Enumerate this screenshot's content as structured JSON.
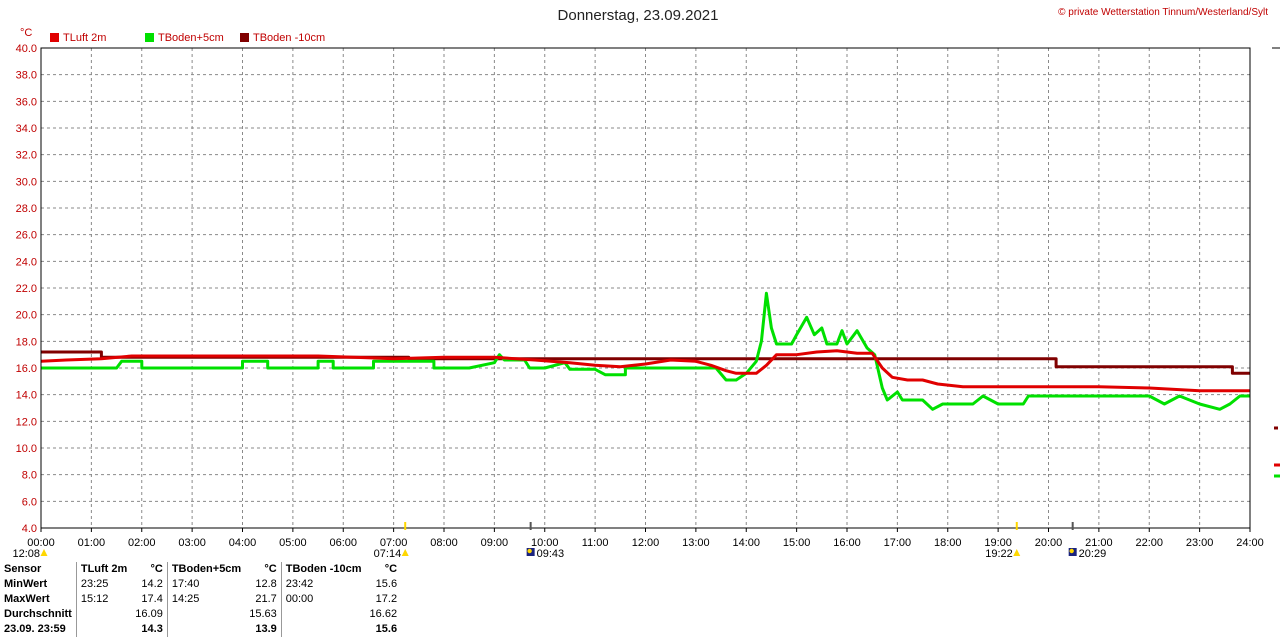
{
  "title": "Donnerstag, 23.09.2021",
  "credit": "© private Wetterstation Tinnum/Westerland/Sylt",
  "chart_data": {
    "type": "line",
    "y_unit_label": "°C",
    "ylim": [
      4.0,
      40.0
    ],
    "y_ticks": [
      "4.0",
      "6.0",
      "8.0",
      "10.0",
      "12.0",
      "14.0",
      "16.0",
      "18.0",
      "20.0",
      "22.0",
      "24.0",
      "26.0",
      "28.0",
      "30.0",
      "32.0",
      "34.0",
      "36.0",
      "38.0",
      "40.0"
    ],
    "x_ticks": [
      "00:00",
      "01:00",
      "02:00",
      "03:00",
      "04:00",
      "05:00",
      "06:00",
      "07:00",
      "08:00",
      "09:00",
      "10:00",
      "11:00",
      "12:00",
      "13:00",
      "14:00",
      "15:00",
      "16:00",
      "17:00",
      "18:00",
      "19:00",
      "20:00",
      "21:00",
      "22:00",
      "23:00",
      "24:00"
    ],
    "grid": true,
    "legend_position": "top-left",
    "series": [
      {
        "name": "TLuft 2m",
        "color": "#e00000",
        "points": [
          [
            0,
            16.5
          ],
          [
            0.5,
            16.6
          ],
          [
            1.2,
            16.7
          ],
          [
            1.8,
            16.9
          ],
          [
            2.5,
            16.9
          ],
          [
            3.5,
            16.9
          ],
          [
            4.5,
            16.9
          ],
          [
            5.5,
            16.9
          ],
          [
            6.2,
            16.8
          ],
          [
            7.0,
            16.7
          ],
          [
            8.0,
            16.8
          ],
          [
            9.0,
            16.8
          ],
          [
            9.8,
            16.6
          ],
          [
            10.5,
            16.4
          ],
          [
            11.0,
            16.2
          ],
          [
            11.5,
            16.1
          ],
          [
            12.0,
            16.3
          ],
          [
            12.5,
            16.6
          ],
          [
            13.0,
            16.5
          ],
          [
            13.3,
            16.2
          ],
          [
            13.6,
            15.8
          ],
          [
            13.8,
            15.6
          ],
          [
            14.2,
            15.6
          ],
          [
            14.4,
            16.2
          ],
          [
            14.6,
            17.0
          ],
          [
            15.0,
            17.0
          ],
          [
            15.4,
            17.2
          ],
          [
            15.8,
            17.3
          ],
          [
            16.2,
            17.1
          ],
          [
            16.5,
            17.1
          ],
          [
            16.7,
            16.0
          ],
          [
            16.9,
            15.3
          ],
          [
            17.2,
            15.1
          ],
          [
            17.5,
            15.1
          ],
          [
            17.8,
            14.8
          ],
          [
            18.3,
            14.6
          ],
          [
            19.0,
            14.6
          ],
          [
            20.0,
            14.6
          ],
          [
            21.0,
            14.6
          ],
          [
            22.0,
            14.5
          ],
          [
            23.0,
            14.3
          ],
          [
            24.0,
            14.3
          ]
        ]
      },
      {
        "name": "TBoden+5cm",
        "color": "#00e000",
        "points": [
          [
            0,
            16.0
          ],
          [
            1.5,
            16.0
          ],
          [
            1.6,
            16.5
          ],
          [
            2.0,
            16.5
          ],
          [
            2.0,
            16.0
          ],
          [
            4.0,
            16.0
          ],
          [
            4.0,
            16.5
          ],
          [
            4.5,
            16.5
          ],
          [
            4.5,
            16.0
          ],
          [
            5.5,
            16.0
          ],
          [
            5.5,
            16.5
          ],
          [
            5.8,
            16.5
          ],
          [
            5.8,
            16.0
          ],
          [
            6.6,
            16.0
          ],
          [
            6.6,
            16.5
          ],
          [
            7.8,
            16.5
          ],
          [
            7.8,
            16.0
          ],
          [
            8.5,
            16.0
          ],
          [
            9.0,
            16.4
          ],
          [
            9.1,
            17.0
          ],
          [
            9.2,
            16.6
          ],
          [
            9.6,
            16.6
          ],
          [
            9.7,
            16.0
          ],
          [
            10.0,
            16.0
          ],
          [
            10.4,
            16.4
          ],
          [
            10.5,
            15.9
          ],
          [
            11.0,
            15.9
          ],
          [
            11.2,
            15.5
          ],
          [
            11.6,
            15.5
          ],
          [
            11.6,
            16.0
          ],
          [
            13.4,
            16.0
          ],
          [
            13.6,
            15.1
          ],
          [
            13.8,
            15.1
          ],
          [
            14.0,
            15.6
          ],
          [
            14.2,
            16.5
          ],
          [
            14.3,
            18.0
          ],
          [
            14.4,
            21.6
          ],
          [
            14.5,
            19.0
          ],
          [
            14.6,
            17.8
          ],
          [
            14.9,
            17.8
          ],
          [
            15.0,
            18.5
          ],
          [
            15.2,
            19.8
          ],
          [
            15.35,
            18.5
          ],
          [
            15.5,
            19.0
          ],
          [
            15.6,
            17.8
          ],
          [
            15.8,
            17.8
          ],
          [
            15.9,
            18.8
          ],
          [
            16.0,
            17.8
          ],
          [
            16.2,
            18.8
          ],
          [
            16.4,
            17.5
          ],
          [
            16.55,
            17.0
          ],
          [
            16.7,
            14.5
          ],
          [
            16.8,
            13.6
          ],
          [
            17.0,
            14.2
          ],
          [
            17.1,
            13.6
          ],
          [
            17.5,
            13.6
          ],
          [
            17.7,
            12.9
          ],
          [
            17.9,
            13.3
          ],
          [
            18.5,
            13.3
          ],
          [
            18.7,
            13.9
          ],
          [
            19.0,
            13.3
          ],
          [
            19.5,
            13.3
          ],
          [
            19.6,
            13.9
          ],
          [
            20.0,
            13.9
          ],
          [
            21.0,
            13.9
          ],
          [
            22.0,
            13.9
          ],
          [
            22.3,
            13.3
          ],
          [
            22.6,
            13.9
          ],
          [
            23.0,
            13.3
          ],
          [
            23.4,
            12.9
          ],
          [
            23.6,
            13.3
          ],
          [
            23.8,
            13.9
          ],
          [
            24.0,
            13.9
          ]
        ]
      },
      {
        "name": "TBoden -10cm",
        "color": "#800000",
        "points": [
          [
            0,
            17.2
          ],
          [
            1.2,
            17.2
          ],
          [
            1.2,
            16.8
          ],
          [
            6.0,
            16.8
          ],
          [
            7.3,
            16.8
          ],
          [
            7.3,
            16.7
          ],
          [
            20.15,
            16.7
          ],
          [
            20.15,
            16.1
          ],
          [
            23.65,
            16.1
          ],
          [
            23.65,
            15.6
          ],
          [
            24.0,
            15.6
          ]
        ]
      }
    ]
  },
  "sun_events": [
    {
      "label": "12:08",
      "hour": 0.0
    },
    {
      "label": "07:14",
      "hour": 7.23
    },
    {
      "label": "09:43",
      "hour": 9.72
    },
    {
      "label": "19:22",
      "hour": 19.37
    },
    {
      "label": "20:29",
      "hour": 20.48
    }
  ],
  "stats": {
    "header": {
      "sensor": "Sensor",
      "s1": "TLuft 2m",
      "u1": "°C",
      "s2": "TBoden+5cm",
      "u2": "°C",
      "s3": "TBoden -10cm",
      "u3": "°C"
    },
    "rows": [
      {
        "label": "MinWert",
        "t1": "23:25",
        "v1": "14.2",
        "t2": "17:40",
        "v2": "12.8",
        "t3": "23:42",
        "v3": "15.6"
      },
      {
        "label": "MaxWert",
        "t1": "15:12",
        "v1": "17.4",
        "t2": "14:25",
        "v2": "21.7",
        "t3": "00:00",
        "v3": "17.2"
      },
      {
        "label": "Durchschnitt",
        "t1": "",
        "v1": "16.09",
        "t2": "",
        "v2": "15.63",
        "t3": "",
        "v3": "16.62"
      },
      {
        "label": "23.09. 23:59",
        "t1": "",
        "v1": "14.3",
        "t2": "",
        "v2": "13.9",
        "t3": "",
        "v3": "15.6"
      }
    ]
  }
}
